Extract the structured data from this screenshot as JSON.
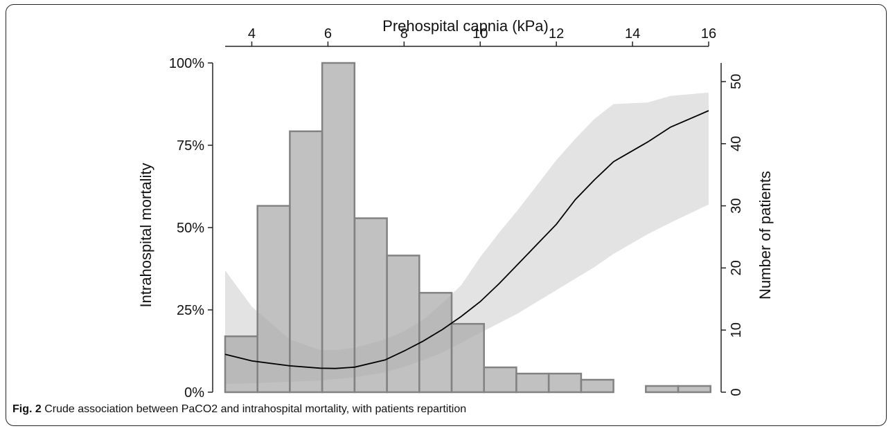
{
  "figure": {
    "label": "Fig. 2",
    "caption": "Crude association between PaCO2 and intrahospital mortality, with patients repartition"
  },
  "chart_data": {
    "type": "bar",
    "title": "",
    "xlabel": "Prehospital capnia (kPa)",
    "ylabel_left": "Intrahospital mortality",
    "ylabel_right": "Number of patients",
    "xlim": [
      3.3,
      16
    ],
    "x_ticks": [
      4,
      6,
      8,
      10,
      12,
      14,
      16
    ],
    "ylim_left": [
      0,
      100
    ],
    "y_ticks_left": [
      {
        "value": 0,
        "label": "0%"
      },
      {
        "value": 25,
        "label": "25%"
      },
      {
        "value": 50,
        "label": "50%"
      },
      {
        "value": 75,
        "label": "75%"
      },
      {
        "value": 100,
        "label": "100%"
      }
    ],
    "ylim_right": [
      0,
      53
    ],
    "y_ticks_right": [
      0,
      10,
      20,
      30,
      40,
      50
    ],
    "grid": false,
    "colors": {
      "bar_fill": "#a9a9a9",
      "bar_edge": "#828282",
      "band": "#d0d0d0",
      "line": "#000000"
    },
    "histogram": {
      "name": "Number of patients",
      "bins": [
        {
          "x0": 3.3,
          "x1": 4.15,
          "count": 9
        },
        {
          "x0": 4.15,
          "x1": 5.0,
          "count": 30
        },
        {
          "x0": 5.0,
          "x1": 5.85,
          "count": 42
        },
        {
          "x0": 5.85,
          "x1": 6.7,
          "count": 53
        },
        {
          "x0": 6.7,
          "x1": 7.55,
          "count": 28
        },
        {
          "x0": 7.55,
          "x1": 8.4,
          "count": 22
        },
        {
          "x0": 8.4,
          "x1": 9.25,
          "count": 16
        },
        {
          "x0": 9.25,
          "x1": 10.1,
          "count": 11
        },
        {
          "x0": 10.1,
          "x1": 10.95,
          "count": 4
        },
        {
          "x0": 10.95,
          "x1": 11.8,
          "count": 3
        },
        {
          "x0": 11.8,
          "x1": 12.65,
          "count": 3
        },
        {
          "x0": 12.65,
          "x1": 13.5,
          "count": 2
        },
        {
          "x0": 13.5,
          "x1": 14.35,
          "count": 0
        },
        {
          "x0": 14.35,
          "x1": 15.2,
          "count": 1
        },
        {
          "x0": 15.2,
          "x1": 16.05,
          "count": 1
        }
      ]
    },
    "mortality_curve": {
      "name": "Intrahospital mortality",
      "x": [
        3.3,
        4.0,
        5.0,
        5.8,
        6.2,
        6.7,
        7.5,
        8.0,
        8.5,
        9.0,
        9.5,
        10.0,
        10.5,
        11.0,
        11.5,
        12.0,
        12.5,
        13.0,
        13.5,
        14.4,
        15.0,
        16.0
      ],
      "y": [
        11.5,
        9.5,
        8.0,
        7.3,
        7.2,
        7.6,
        9.8,
        12.5,
        15.5,
        19.0,
        23.0,
        27.5,
        33.0,
        39.0,
        45.0,
        51.0,
        58.5,
        64.5,
        70.0,
        76.0,
        80.5,
        85.5
      ],
      "ci_lower": [
        2.5,
        2.7,
        3.2,
        3.5,
        4.0,
        4.5,
        6.0,
        7.7,
        9.7,
        12.0,
        15.0,
        18.0,
        21.0,
        24.0,
        27.5,
        31.0,
        34.5,
        38.0,
        42.0,
        48.0,
        51.5,
        57.0
      ],
      "ci_upper": [
        37.0,
        26.0,
        16.0,
        12.8,
        12.8,
        13.5,
        16.0,
        18.5,
        22.0,
        27.0,
        32.5,
        41.0,
        48.5,
        55.5,
        63.0,
        70.5,
        77.0,
        83.0,
        87.5,
        88.0,
        90.0,
        91.0
      ]
    }
  }
}
